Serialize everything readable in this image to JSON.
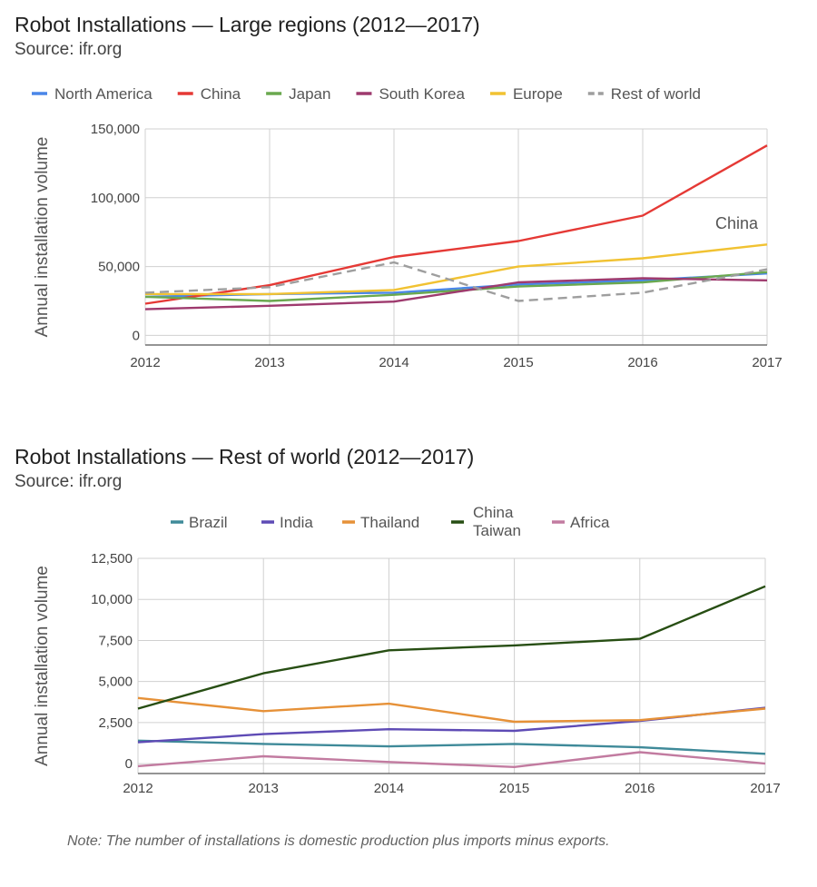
{
  "chart_data": [
    {
      "type": "line",
      "title": "Robot Installations — Large regions (2012—2017)",
      "subtitle": "Source: ifr.org",
      "xlabel": "",
      "ylabel": "Annual installation volume",
      "x": [
        "2012",
        "2013",
        "2014",
        "2015",
        "2016",
        "2017"
      ],
      "ylim": [
        -7000,
        150000
      ],
      "yticks": [
        0,
        50000,
        100000,
        150000
      ],
      "ytick_labels": [
        "0",
        "50,000",
        "100,000",
        "150,000"
      ],
      "grid": true,
      "legend": "top",
      "series": [
        {
          "name": "North America",
          "color": "#4a86e8",
          "dashed": false,
          "values": [
            28000,
            30000,
            31000,
            37000,
            40000,
            45000
          ]
        },
        {
          "name": "China",
          "color": "#e53935",
          "dashed": false,
          "values": [
            23000,
            36500,
            57000,
            68500,
            87000,
            138000
          ]
        },
        {
          "name": "Japan",
          "color": "#6aa84f",
          "dashed": false,
          "values": [
            28000,
            25000,
            29500,
            35500,
            38500,
            46000
          ]
        },
        {
          "name": "South Korea",
          "color": "#9e3a6e",
          "dashed": false,
          "values": [
            19000,
            21500,
            24500,
            38500,
            41500,
            40000
          ]
        },
        {
          "name": "Europe",
          "color": "#f1c232",
          "dashed": false,
          "values": [
            30000,
            30000,
            33000,
            50000,
            56000,
            66000
          ]
        },
        {
          "name": "Rest of world",
          "color": "#9e9e9e",
          "dashed": true,
          "values": [
            31000,
            35000,
            53000,
            25000,
            31000,
            48000
          ]
        }
      ],
      "annotations": [
        {
          "text": "China",
          "x": "2017",
          "y": 80000
        }
      ]
    },
    {
      "type": "line",
      "title": "Robot Installations — Rest of world (2012—2017)",
      "subtitle": "Source: ifr.org",
      "xlabel": "",
      "ylabel": "Annual installation volume",
      "x": [
        "2012",
        "2013",
        "2014",
        "2015",
        "2016",
        "2017"
      ],
      "ylim": [
        -600,
        12500
      ],
      "yticks": [
        0,
        2500,
        5000,
        7500,
        10000,
        12500
      ],
      "ytick_labels": [
        "0",
        "2,500",
        "5,000",
        "7,500",
        "10,000",
        "12,500"
      ],
      "grid": true,
      "legend": "top",
      "series": [
        {
          "name": "Brazil",
          "legend_lines": [
            "Brazil"
          ],
          "color": "#3f8a99",
          "dashed": false,
          "values": [
            1400,
            1200,
            1050,
            1200,
            1000,
            600
          ]
        },
        {
          "name": "India",
          "legend_lines": [
            "India"
          ],
          "color": "#5e4bb5",
          "dashed": false,
          "values": [
            1300,
            1800,
            2100,
            2000,
            2600,
            3400
          ]
        },
        {
          "name": "Thailand",
          "legend_lines": [
            "Thailand"
          ],
          "color": "#e69138",
          "dashed": false,
          "values": [
            4000,
            3200,
            3650,
            2550,
            2650,
            3350
          ]
        },
        {
          "name": "China Taiwan",
          "legend_lines": [
            "China",
            "Taiwan"
          ],
          "color": "#274e13",
          "dashed": false,
          "values": [
            3350,
            5500,
            6900,
            7200,
            7600,
            10800
          ]
        },
        {
          "name": "Africa",
          "legend_lines": [
            "Africa"
          ],
          "color": "#c27ba0",
          "dashed": false,
          "values": [
            -150,
            450,
            100,
            -200,
            700,
            0
          ]
        }
      ]
    }
  ],
  "note": "Note: The number of installations is domestic production plus imports minus exports."
}
